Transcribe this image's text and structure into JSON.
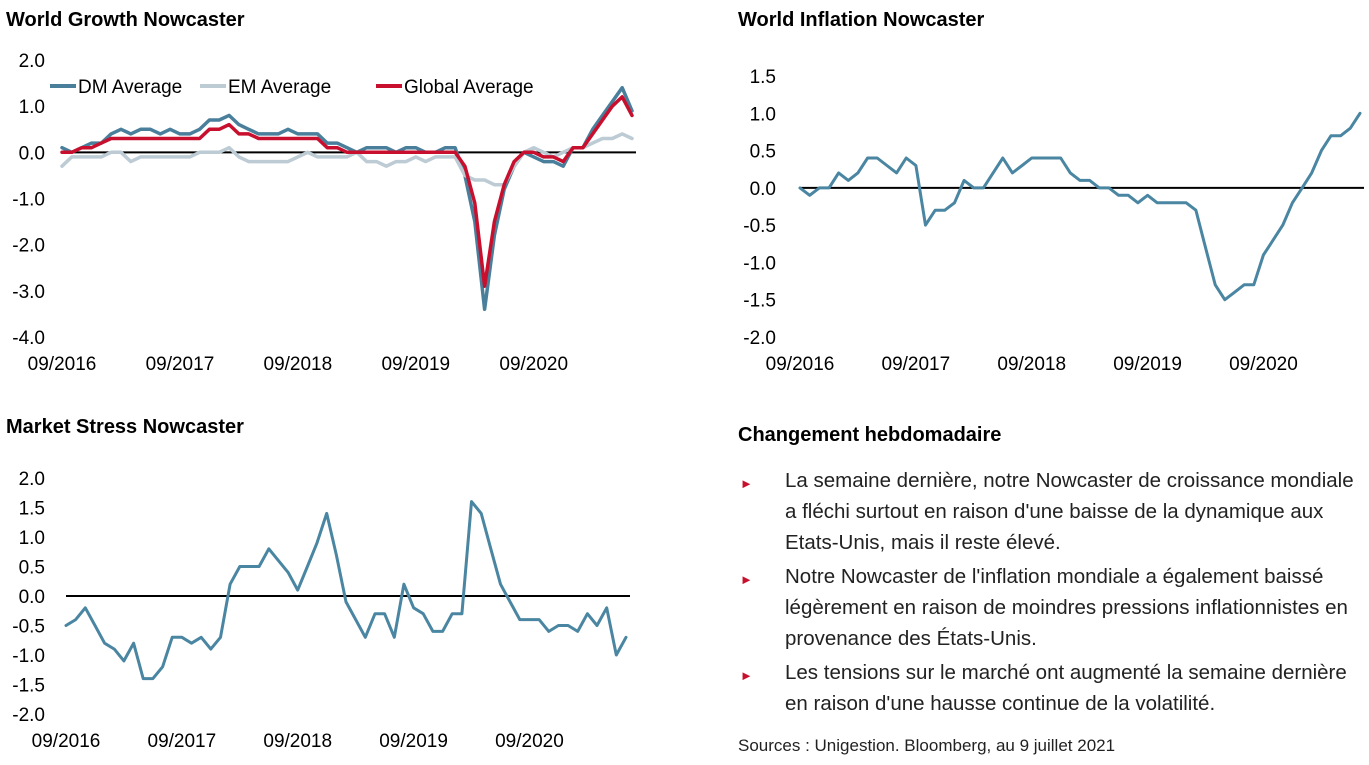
{
  "colors": {
    "dm": "#4a7f9c",
    "em": "#bccbd4",
    "global": "#c8102e",
    "single": "#4a86a2",
    "axis": "#000000"
  },
  "chart_data": [
    {
      "id": "growth",
      "type": "line",
      "title": "World Growth Nowcaster",
      "xlabel": "",
      "ylabel": "",
      "x_range": [
        "2016-09",
        "2021-07"
      ],
      "x_ticks": [
        "09/2016",
        "09/2017",
        "09/2018",
        "09/2019",
        "09/2020"
      ],
      "y_ticks": [
        "2.0",
        "1.0",
        "0.0",
        "-1.0",
        "-2.0",
        "-3.0",
        "-4.0"
      ],
      "ylim": [
        -4,
        2
      ],
      "legend": "top",
      "series": [
        {
          "name": "DM Average",
          "color": "#4a7f9c",
          "width": 3.5,
          "x": [
            "2016-09",
            "2016-10",
            "2016-11",
            "2016-12",
            "2017-01",
            "2017-02",
            "2017-03",
            "2017-04",
            "2017-05",
            "2017-06",
            "2017-07",
            "2017-08",
            "2017-09",
            "2017-10",
            "2017-11",
            "2017-12",
            "2018-01",
            "2018-02",
            "2018-03",
            "2018-04",
            "2018-05",
            "2018-06",
            "2018-07",
            "2018-08",
            "2018-09",
            "2018-10",
            "2018-11",
            "2018-12",
            "2019-01",
            "2019-02",
            "2019-03",
            "2019-04",
            "2019-05",
            "2019-06",
            "2019-07",
            "2019-08",
            "2019-09",
            "2019-10",
            "2019-11",
            "2019-12",
            "2020-01",
            "2020-02",
            "2020-03",
            "2020-04",
            "2020-05",
            "2020-06",
            "2020-07",
            "2020-08",
            "2020-09",
            "2020-10",
            "2020-11",
            "2020-12",
            "2021-01",
            "2021-02",
            "2021-03",
            "2021-04",
            "2021-05",
            "2021-06",
            "2021-07"
          ],
          "y": [
            0.1,
            0.0,
            0.1,
            0.2,
            0.2,
            0.4,
            0.5,
            0.4,
            0.5,
            0.5,
            0.4,
            0.5,
            0.4,
            0.4,
            0.5,
            0.7,
            0.7,
            0.8,
            0.6,
            0.5,
            0.4,
            0.4,
            0.4,
            0.5,
            0.4,
            0.4,
            0.4,
            0.2,
            0.2,
            0.1,
            0.0,
            0.1,
            0.1,
            0.1,
            0.0,
            0.1,
            0.1,
            0.0,
            0.0,
            0.1,
            0.1,
            -0.5,
            -1.5,
            -3.4,
            -1.8,
            -0.8,
            -0.3,
            0.0,
            -0.1,
            -0.2,
            -0.2,
            -0.3,
            0.1,
            0.1,
            0.5,
            0.8,
            1.1,
            1.4,
            0.9
          ]
        },
        {
          "name": "EM Average",
          "color": "#bccbd4",
          "width": 3.5,
          "x": [
            "2016-09",
            "2016-10",
            "2016-11",
            "2016-12",
            "2017-01",
            "2017-02",
            "2017-03",
            "2017-04",
            "2017-05",
            "2017-06",
            "2017-07",
            "2017-08",
            "2017-09",
            "2017-10",
            "2017-11",
            "2017-12",
            "2018-01",
            "2018-02",
            "2018-03",
            "2018-04",
            "2018-05",
            "2018-06",
            "2018-07",
            "2018-08",
            "2018-09",
            "2018-10",
            "2018-11",
            "2018-12",
            "2019-01",
            "2019-02",
            "2019-03",
            "2019-04",
            "2019-05",
            "2019-06",
            "2019-07",
            "2019-08",
            "2019-09",
            "2019-10",
            "2019-11",
            "2019-12",
            "2020-01",
            "2020-02",
            "2020-03",
            "2020-04",
            "2020-05",
            "2020-06",
            "2020-07",
            "2020-08",
            "2020-09",
            "2020-10",
            "2020-11",
            "2020-12",
            "2021-01",
            "2021-02",
            "2021-03",
            "2021-04",
            "2021-05",
            "2021-06",
            "2021-07"
          ],
          "y": [
            -0.3,
            -0.1,
            -0.1,
            -0.1,
            -0.1,
            0.0,
            0.0,
            -0.2,
            -0.1,
            -0.1,
            -0.1,
            -0.1,
            -0.1,
            -0.1,
            0.0,
            0.0,
            0.0,
            0.1,
            -0.1,
            -0.2,
            -0.2,
            -0.2,
            -0.2,
            -0.2,
            -0.1,
            0.0,
            -0.1,
            -0.1,
            -0.1,
            -0.1,
            0.0,
            -0.2,
            -0.2,
            -0.3,
            -0.2,
            -0.2,
            -0.1,
            -0.2,
            -0.1,
            -0.1,
            -0.1,
            -0.5,
            -0.6,
            -0.6,
            -0.7,
            -0.7,
            -0.3,
            0.0,
            0.1,
            0.0,
            -0.1,
            0.0,
            0.1,
            0.1,
            0.2,
            0.3,
            0.3,
            0.4,
            0.3
          ]
        },
        {
          "name": "Global Average",
          "color": "#c8102e",
          "width": 3.5,
          "x": [
            "2016-09",
            "2016-10",
            "2016-11",
            "2016-12",
            "2017-01",
            "2017-02",
            "2017-03",
            "2017-04",
            "2017-05",
            "2017-06",
            "2017-07",
            "2017-08",
            "2017-09",
            "2017-10",
            "2017-11",
            "2017-12",
            "2018-01",
            "2018-02",
            "2018-03",
            "2018-04",
            "2018-05",
            "2018-06",
            "2018-07",
            "2018-08",
            "2018-09",
            "2018-10",
            "2018-11",
            "2018-12",
            "2019-01",
            "2019-02",
            "2019-03",
            "2019-04",
            "2019-05",
            "2019-06",
            "2019-07",
            "2019-08",
            "2019-09",
            "2019-10",
            "2019-11",
            "2019-12",
            "2020-01",
            "2020-02",
            "2020-03",
            "2020-04",
            "2020-05",
            "2020-06",
            "2020-07",
            "2020-08",
            "2020-09",
            "2020-10",
            "2020-11",
            "2020-12",
            "2021-01",
            "2021-02",
            "2021-03",
            "2021-04",
            "2021-05",
            "2021-06",
            "2021-07"
          ],
          "y": [
            0.0,
            0.0,
            0.1,
            0.1,
            0.2,
            0.3,
            0.3,
            0.3,
            0.3,
            0.3,
            0.3,
            0.3,
            0.3,
            0.3,
            0.3,
            0.5,
            0.5,
            0.6,
            0.4,
            0.4,
            0.3,
            0.3,
            0.3,
            0.3,
            0.3,
            0.3,
            0.3,
            0.1,
            0.1,
            0.0,
            0.0,
            0.0,
            0.0,
            0.0,
            0.0,
            0.0,
            0.0,
            0.0,
            0.0,
            0.0,
            0.0,
            -0.3,
            -1.1,
            -2.9,
            -1.5,
            -0.7,
            -0.2,
            0.0,
            0.0,
            -0.1,
            -0.1,
            -0.2,
            0.1,
            0.1,
            0.4,
            0.7,
            1.0,
            1.2,
            0.8
          ]
        }
      ]
    },
    {
      "id": "inflation",
      "type": "line",
      "title": "World Inflation Nowcaster",
      "xlabel": "",
      "ylabel": "",
      "x_range": [
        "2016-09",
        "2021-07"
      ],
      "x_ticks": [
        "09/2016",
        "09/2017",
        "09/2018",
        "09/2019",
        "09/2020"
      ],
      "y_ticks": [
        "1.5",
        "1.0",
        "0.5",
        "0.0",
        "-0.5",
        "-1.0",
        "-1.5",
        "-2.0"
      ],
      "ylim": [
        -2,
        1.5
      ],
      "series": [
        {
          "name": "",
          "color": "#4a86a2",
          "width": 3,
          "x": [
            "2016-09",
            "2016-10",
            "2016-11",
            "2016-12",
            "2017-01",
            "2017-02",
            "2017-03",
            "2017-04",
            "2017-05",
            "2017-06",
            "2017-07",
            "2017-08",
            "2017-09",
            "2017-10",
            "2017-11",
            "2017-12",
            "2018-01",
            "2018-02",
            "2018-03",
            "2018-04",
            "2018-05",
            "2018-06",
            "2018-07",
            "2018-08",
            "2018-09",
            "2018-10",
            "2018-11",
            "2018-12",
            "2019-01",
            "2019-02",
            "2019-03",
            "2019-04",
            "2019-05",
            "2019-06",
            "2019-07",
            "2019-08",
            "2019-09",
            "2019-10",
            "2019-11",
            "2019-12",
            "2020-01",
            "2020-02",
            "2020-03",
            "2020-04",
            "2020-05",
            "2020-06",
            "2020-07",
            "2020-08",
            "2020-09",
            "2020-10",
            "2020-11",
            "2020-12",
            "2021-01",
            "2021-02",
            "2021-03",
            "2021-04",
            "2021-05",
            "2021-06",
            "2021-07"
          ],
          "y": [
            0.0,
            -0.1,
            0.0,
            0.0,
            0.2,
            0.1,
            0.2,
            0.4,
            0.4,
            0.3,
            0.2,
            0.4,
            0.3,
            -0.5,
            -0.3,
            -0.3,
            -0.2,
            0.1,
            0.0,
            0.0,
            0.2,
            0.4,
            0.2,
            0.3,
            0.4,
            0.4,
            0.4,
            0.4,
            0.2,
            0.1,
            0.1,
            0.0,
            0.0,
            -0.1,
            -0.1,
            -0.2,
            -0.1,
            -0.2,
            -0.2,
            -0.2,
            -0.2,
            -0.3,
            -0.8,
            -1.3,
            -1.5,
            -1.4,
            -1.3,
            -1.3,
            -0.9,
            -0.7,
            -0.5,
            -0.2,
            0.0,
            0.2,
            0.5,
            0.7,
            0.7,
            0.8,
            1.0
          ]
        }
      ]
    },
    {
      "id": "stress",
      "type": "line",
      "title": "Market Stress Nowcaster",
      "xlabel": "",
      "ylabel": "",
      "x_range": [
        "2016-09",
        "2021-07"
      ],
      "x_ticks": [
        "09/2016",
        "09/2017",
        "09/2018",
        "09/2019",
        "09/2020"
      ],
      "y_ticks": [
        "2.0",
        "1.5",
        "1.0",
        "0.5",
        "0.0",
        "-0.5",
        "-1.0",
        "-1.5",
        "-2.0"
      ],
      "ylim": [
        -2,
        2
      ],
      "series": [
        {
          "name": "",
          "color": "#4a86a2",
          "width": 3,
          "x": [
            "2016-09",
            "2016-10",
            "2016-11",
            "2016-12",
            "2017-01",
            "2017-02",
            "2017-03",
            "2017-04",
            "2017-05",
            "2017-06",
            "2017-07",
            "2017-08",
            "2017-09",
            "2017-10",
            "2017-11",
            "2017-12",
            "2018-01",
            "2018-02",
            "2018-03",
            "2018-04",
            "2018-05",
            "2018-06",
            "2018-07",
            "2018-08",
            "2018-09",
            "2018-10",
            "2018-11",
            "2018-12",
            "2019-01",
            "2019-02",
            "2019-03",
            "2019-04",
            "2019-05",
            "2019-06",
            "2019-07",
            "2019-08",
            "2019-09",
            "2019-10",
            "2019-11",
            "2019-12",
            "2020-01",
            "2020-02",
            "2020-03",
            "2020-04",
            "2020-05",
            "2020-06",
            "2020-07",
            "2020-08",
            "2020-09",
            "2020-10",
            "2020-11",
            "2020-12",
            "2021-01",
            "2021-02",
            "2021-03",
            "2021-04",
            "2021-05",
            "2021-06",
            "2021-07"
          ],
          "y": [
            -0.5,
            -0.4,
            -0.2,
            -0.5,
            -0.8,
            -0.9,
            -1.1,
            -0.8,
            -1.4,
            -1.4,
            -1.2,
            -0.7,
            -0.7,
            -0.8,
            -0.7,
            -0.9,
            -0.7,
            0.2,
            0.5,
            0.5,
            0.5,
            0.8,
            0.6,
            0.4,
            0.1,
            0.5,
            0.9,
            1.4,
            0.7,
            -0.1,
            -0.4,
            -0.7,
            -0.3,
            -0.3,
            -0.7,
            0.2,
            -0.2,
            -0.3,
            -0.6,
            -0.6,
            -0.3,
            -0.3,
            1.6,
            1.4,
            0.8,
            0.2,
            -0.1,
            -0.4,
            -0.4,
            -0.4,
            -0.6,
            -0.5,
            -0.5,
            -0.6,
            -0.3,
            -0.5,
            -0.2,
            -1.0,
            -0.7
          ]
        }
      ]
    }
  ],
  "summary": {
    "title": "Changement hebdomadaire",
    "bullet_marker": "►",
    "bullets": [
      "La semaine dernière, notre Nowcaster de croissance mondiale a fléchi surtout en raison d'une baisse de la dynamique aux Etats-Unis, mais il reste élevé.",
      "Notre Nowcaster de l'inflation mondiale a également baissé légèrement en raison de moindres pressions inflationnistes en provenance des États-Unis.",
      "Les tensions sur le marché ont augmenté la semaine dernière en raison d'une hausse continue de la volatilité."
    ],
    "sources": "Sources : Unigestion. Bloomberg, au 9 juillet 2021"
  }
}
